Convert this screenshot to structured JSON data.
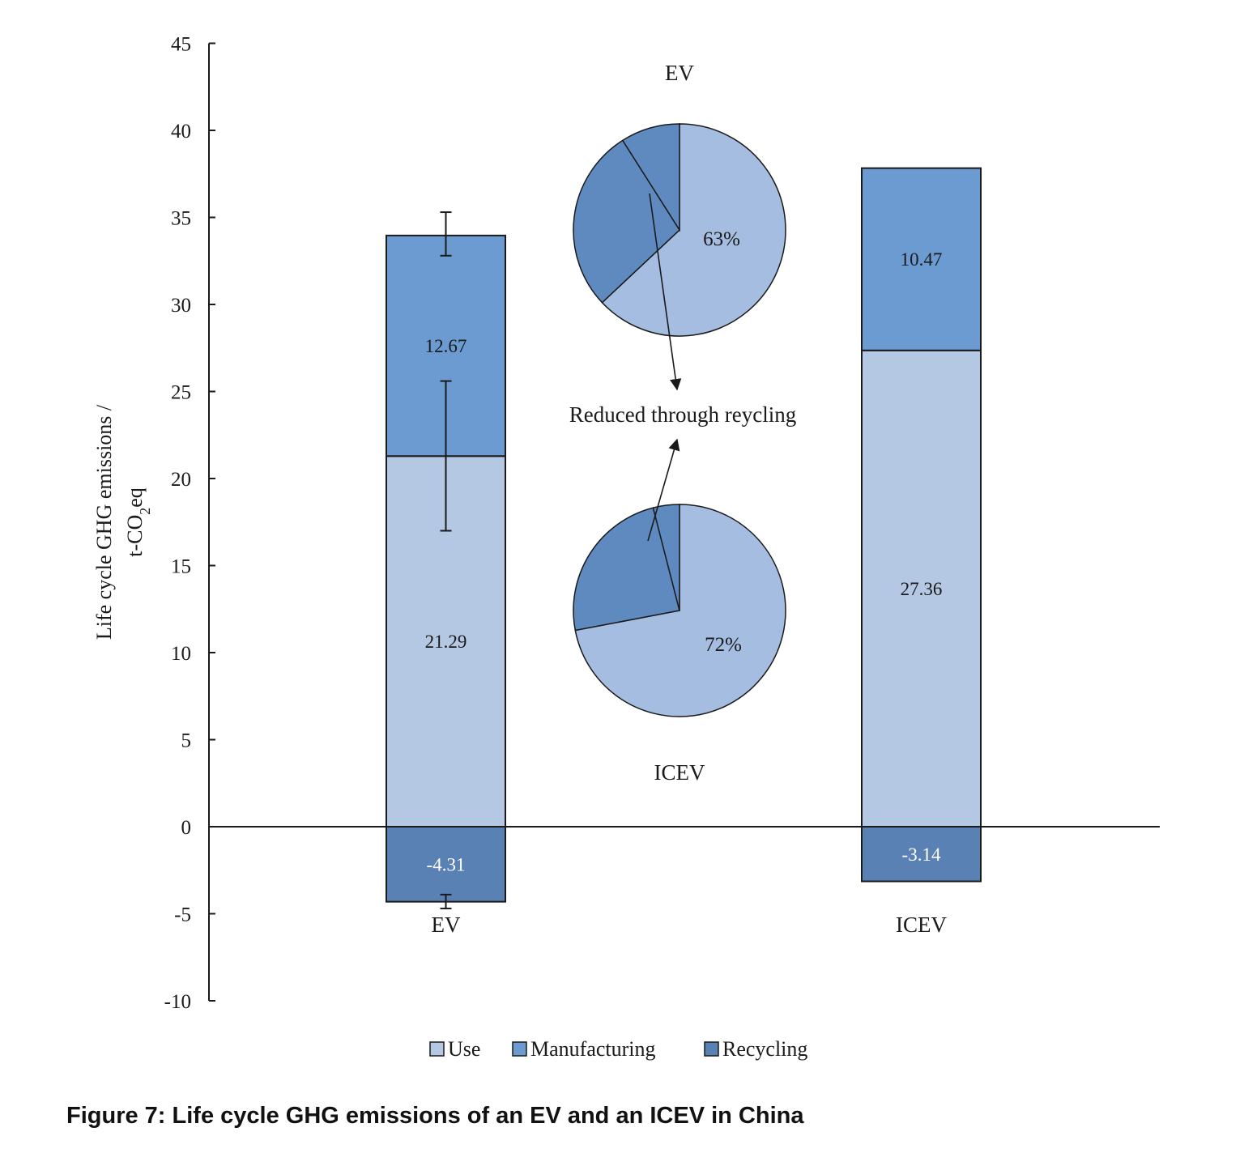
{
  "caption": "Figure 7: Life cycle GHG emissions of an EV and an ICEV in China",
  "chart_data": {
    "type": "bar",
    "stacked": true,
    "categories": [
      "EV",
      "ICEV"
    ],
    "series": [
      {
        "name": "Use",
        "values": [
          21.29,
          27.36
        ],
        "labels": [
          "21.29",
          "27.36"
        ],
        "color": "#b4c7e3"
      },
      {
        "name": "Manufacturing",
        "values": [
          12.67,
          10.47
        ],
        "labels": [
          "12.67",
          "10.47"
        ],
        "color": "#6b9bd1"
      },
      {
        "name": "Recycling",
        "values": [
          -4.31,
          -3.14
        ],
        "labels": [
          "-4.31",
          "-3.14"
        ],
        "color": "#5a81b4"
      }
    ],
    "error_bars": [
      {
        "category": "EV",
        "series": "Manufacturing",
        "low": 32.8,
        "high": 35.3
      },
      {
        "category": "EV",
        "series": "Use",
        "low": 17.0,
        "high": 25.6
      },
      {
        "category": "EV",
        "series": "Recycling",
        "low": -4.7,
        "high": -3.9
      }
    ],
    "ylabel_line1": "Life cycle GHG emissions /",
    "ylabel_line2_prefix": "t-CO",
    "ylabel_line2_sub": "2",
    "ylabel_line2_suffix": "eq",
    "ylim": [
      -10,
      45
    ],
    "yticks": [
      -10,
      -5,
      0,
      5,
      10,
      15,
      20,
      25,
      30,
      35,
      40,
      45
    ],
    "legend_position": "bottom",
    "grid": false,
    "inset_pies": [
      {
        "title": "EV",
        "label": "63%",
        "slices": [
          {
            "series": "Use",
            "value": 63
          },
          {
            "series": "Manufacturing",
            "value": 37
          }
        ],
        "recycling_portion": 9
      },
      {
        "title": "ICEV",
        "label": "72%",
        "slices": [
          {
            "series": "Use",
            "value": 72
          },
          {
            "series": "Manufacturing",
            "value": 28
          }
        ],
        "recycling_portion": 4
      }
    ],
    "annotation": "Reduced through reycling"
  }
}
